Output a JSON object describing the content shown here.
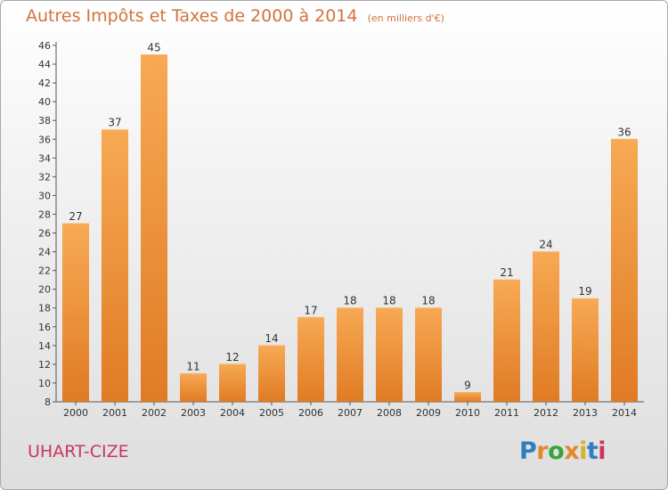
{
  "chart_data": {
    "type": "bar",
    "title": "Autres Impôts et Taxes de 2000 à 2014",
    "unit": "(en milliers d'€)",
    "categories": [
      "2000",
      "2001",
      "2002",
      "2003",
      "2004",
      "2005",
      "2006",
      "2007",
      "2008",
      "2009",
      "2010",
      "2011",
      "2012",
      "2013",
      "2014"
    ],
    "values": [
      27,
      37,
      45,
      11,
      12,
      14,
      17,
      18,
      18,
      18,
      9,
      21,
      24,
      19,
      36
    ],
    "xlabel": "",
    "ylabel": "",
    "ylim": [
      8,
      46
    ],
    "yticks": [
      8,
      10,
      12,
      14,
      16,
      18,
      20,
      22,
      24,
      26,
      28,
      30,
      32,
      34,
      36,
      38,
      40,
      42,
      44,
      46
    ],
    "grid": false,
    "legend": "none",
    "bar_color": "#f0913a"
  },
  "footer": {
    "commune": "UHART-CIZE",
    "logo_letters": [
      "P",
      "r",
      "o",
      "x",
      "i",
      "t",
      "i"
    ],
    "logo_colors": [
      "#2e7fbf",
      "#e0892b",
      "#3aa33a",
      "#e0892b",
      "#d6b12a",
      "#2e7fbf",
      "#c8365d"
    ]
  }
}
